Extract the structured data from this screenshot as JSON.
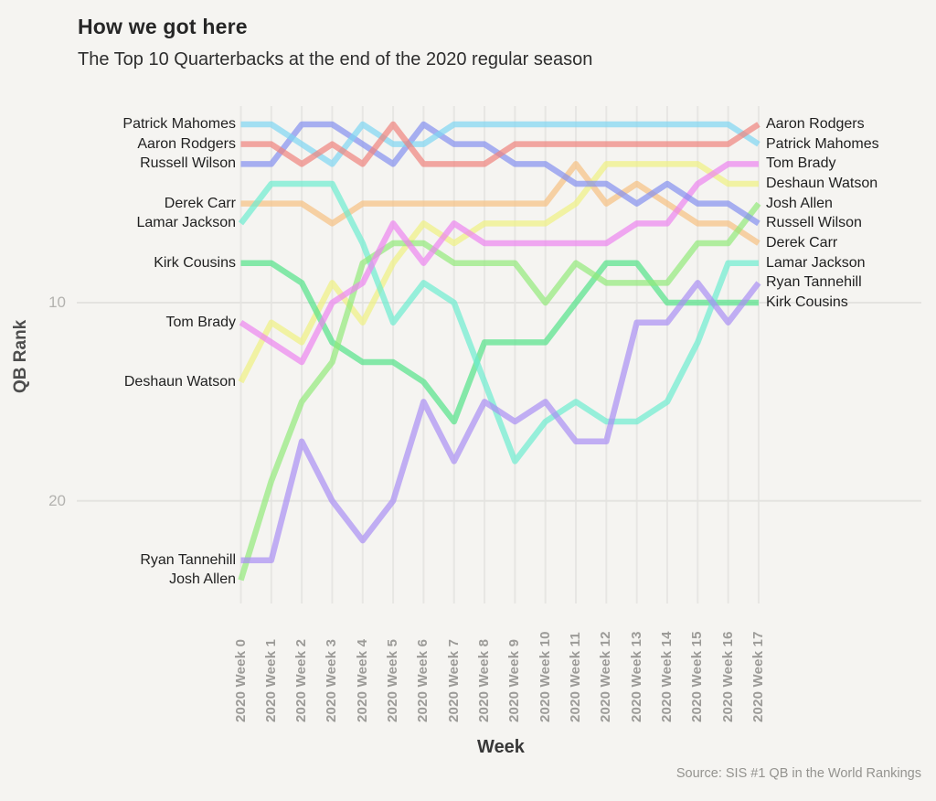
{
  "title": "How we got here",
  "subtitle": "The Top 10 Quarterbacks at the end of the 2020 regular season",
  "source": "Source: SIS #1 QB in the World Rankings",
  "axes": {
    "y_label": "QB Rank",
    "x_label": "Week",
    "y_ticks": [
      "10",
      "20"
    ]
  },
  "chart_data": {
    "type": "line",
    "subtype": "bump-chart",
    "title": "How we got here",
    "subtitle": "The Top 10 Quarterbacks at the end of the 2020 regular season",
    "xlabel": "Week",
    "ylabel": "QB Rank",
    "x": [
      "2020 Week 0",
      "2020 Week 1",
      "2020 Week 2",
      "2020 Week 3",
      "2020 Week 4",
      "2020 Week 5",
      "2020 Week 6",
      "2020 Week 7",
      "2020 Week 8",
      "2020 Week 9",
      "2020 Week 10",
      "2020 Week 11",
      "2020 Week 12",
      "2020 Week 13",
      "2020 Week 14",
      "2020 Week 15",
      "2020 Week 16",
      "2020 Week 17"
    ],
    "y_axis": {
      "inverted": true,
      "ticks": [
        10,
        20
      ],
      "range": [
        1,
        25
      ],
      "grid": "horizontal-at-ticks"
    },
    "legend_position": "line-end-labels-both-sides",
    "series": [
      {
        "name": "Derek Carr",
        "color": "#f7c181",
        "ranks": [
          5,
          5,
          5,
          6,
          5,
          5,
          5,
          5,
          5,
          5,
          5,
          3,
          5,
          4,
          5,
          6,
          6,
          7
        ]
      },
      {
        "name": "Deshaun Watson",
        "color": "#eff181",
        "ranks": [
          14,
          11,
          12,
          9,
          11,
          8,
          6,
          7,
          6,
          6,
          6,
          5,
          3,
          3,
          3,
          3,
          4,
          4
        ]
      },
      {
        "name": "Kirk Cousins",
        "color": "#54e389",
        "ranks": [
          8,
          8,
          9,
          12,
          13,
          13,
          14,
          16,
          12,
          12,
          12,
          10,
          8,
          8,
          10,
          10,
          10,
          10
        ]
      },
      {
        "name": "Lamar Jackson",
        "color": "#6dedd0",
        "ranks": [
          6,
          4,
          4,
          4,
          7,
          11,
          9,
          10,
          14,
          18,
          16,
          15,
          16,
          16,
          15,
          12,
          8,
          8
        ]
      },
      {
        "name": "Josh Allen",
        "color": "#93ea7b",
        "ranks": [
          24,
          19,
          15,
          13,
          8,
          7,
          7,
          8,
          8,
          8,
          10,
          8,
          9,
          9,
          9,
          7,
          7,
          5
        ]
      },
      {
        "name": "Ryan Tannehill",
        "color": "#a98ef3",
        "ranks": [
          23,
          23,
          17,
          20,
          22,
          20,
          15,
          18,
          15,
          16,
          15,
          17,
          17,
          11,
          11,
          9,
          11,
          9
        ]
      },
      {
        "name": "Tom Brady",
        "color": "#ec84ef",
        "ranks": [
          11,
          12,
          13,
          10,
          9,
          6,
          8,
          6,
          7,
          7,
          7,
          7,
          7,
          6,
          6,
          4,
          3,
          3
        ]
      },
      {
        "name": "Russell Wilson",
        "color": "#8590ef",
        "ranks": [
          3,
          3,
          1,
          1,
          2,
          3,
          1,
          2,
          2,
          3,
          3,
          4,
          4,
          5,
          4,
          5,
          5,
          6
        ]
      },
      {
        "name": "Patrick Mahomes",
        "color": "#7fd6f2",
        "ranks": [
          1,
          1,
          2,
          3,
          1,
          2,
          2,
          1,
          1,
          1,
          1,
          1,
          1,
          1,
          1,
          1,
          1,
          2
        ]
      },
      {
        "name": "Aaron Rodgers",
        "color": "#f0837d",
        "ranks": [
          2,
          2,
          3,
          2,
          3,
          1,
          3,
          3,
          3,
          2,
          2,
          2,
          2,
          2,
          2,
          2,
          2,
          1
        ]
      }
    ]
  }
}
